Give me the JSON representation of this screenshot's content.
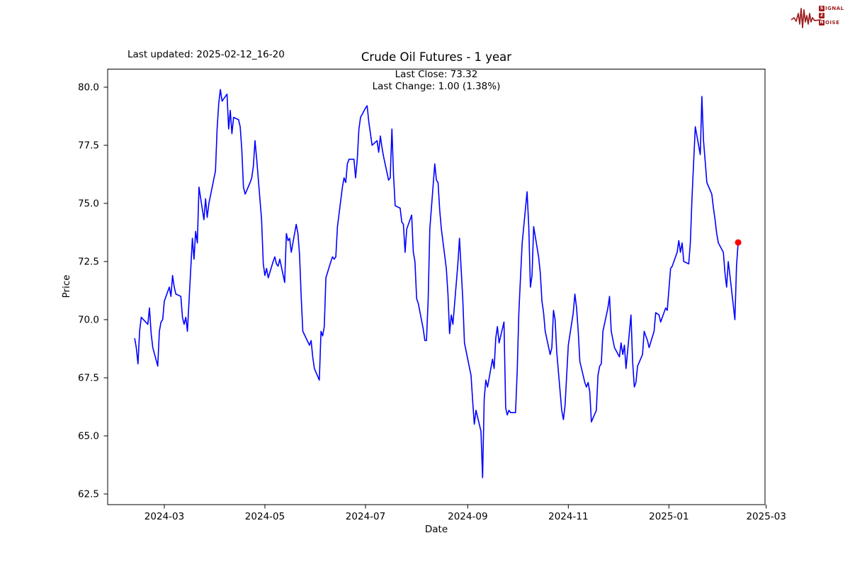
{
  "header": {
    "last_updated": "Last updated: 2025-02-12_16-20"
  },
  "logo": {
    "rows": [
      {
        "boxed": "S",
        "rest": "IGNAL"
      },
      {
        "boxed": "2",
        "rest": ""
      },
      {
        "boxed": "N",
        "rest": "OISE"
      }
    ]
  },
  "chart_data": {
    "type": "line",
    "title": "Crude Oil Futures - 1 year",
    "subtitle_line1": "Last Close: 73.32",
    "subtitle_line2": "Last Change: 1.00 (1.38%)",
    "xlabel": "Date",
    "ylabel": "Price",
    "line_color": "#0000ff",
    "marker": {
      "date": "2025-02-12",
      "price": 73.32,
      "color": "#ff0000"
    },
    "grid": false,
    "ylim": [
      62.05,
      80.78
    ],
    "y_ticks": [
      {
        "label": "62.5",
        "value": 62.5
      },
      {
        "label": "65.0",
        "value": 65.0
      },
      {
        "label": "67.5",
        "value": 67.5
      },
      {
        "label": "70.0",
        "value": 70.0
      },
      {
        "label": "72.5",
        "value": 72.5
      },
      {
        "label": "75.0",
        "value": 75.0
      },
      {
        "label": "77.5",
        "value": 77.5
      },
      {
        "label": "80.0",
        "value": 80.0
      }
    ],
    "x_ticks": [
      {
        "label": "2024-03",
        "date": "2024-03-01"
      },
      {
        "label": "2024-05",
        "date": "2024-05-01"
      },
      {
        "label": "2024-07",
        "date": "2024-07-01"
      },
      {
        "label": "2024-09",
        "date": "2024-09-01"
      },
      {
        "label": "2024-11",
        "date": "2024-11-01"
      },
      {
        "label": "2025-01",
        "date": "2025-01-01"
      },
      {
        "label": "2025-03",
        "date": "2025-03-01"
      }
    ],
    "series": [
      {
        "name": "Price",
        "points": [
          [
            "2024-02-12",
            69.2
          ],
          [
            "2024-02-13",
            68.8
          ],
          [
            "2024-02-14",
            68.1
          ],
          [
            "2024-02-15",
            69.5
          ],
          [
            "2024-02-16",
            70.1
          ],
          [
            "2024-02-20",
            69.8
          ],
          [
            "2024-02-21",
            70.5
          ],
          [
            "2024-02-22",
            69.4
          ],
          [
            "2024-02-23",
            68.8
          ],
          [
            "2024-02-26",
            68.0
          ],
          [
            "2024-02-27",
            69.5
          ],
          [
            "2024-02-28",
            69.9
          ],
          [
            "2024-02-29",
            70.0
          ],
          [
            "2024-03-01",
            70.8
          ],
          [
            "2024-03-04",
            71.4
          ],
          [
            "2024-03-05",
            71.0
          ],
          [
            "2024-03-06",
            71.9
          ],
          [
            "2024-03-07",
            71.4
          ],
          [
            "2024-03-08",
            71.1
          ],
          [
            "2024-03-11",
            71.0
          ],
          [
            "2024-03-12",
            70.1
          ],
          [
            "2024-03-13",
            69.8
          ],
          [
            "2024-03-14",
            70.1
          ],
          [
            "2024-03-15",
            69.5
          ],
          [
            "2024-03-18",
            73.5
          ],
          [
            "2024-03-19",
            72.6
          ],
          [
            "2024-03-20",
            73.8
          ],
          [
            "2024-03-21",
            73.3
          ],
          [
            "2024-03-22",
            75.7
          ],
          [
            "2024-03-25",
            74.3
          ],
          [
            "2024-03-26",
            75.2
          ],
          [
            "2024-03-27",
            74.4
          ],
          [
            "2024-03-28",
            75.0
          ],
          [
            "2024-04-01",
            76.4
          ],
          [
            "2024-04-02",
            78.2
          ],
          [
            "2024-04-03",
            79.3
          ],
          [
            "2024-04-04",
            79.9
          ],
          [
            "2024-04-05",
            79.4
          ],
          [
            "2024-04-08",
            79.7
          ],
          [
            "2024-04-09",
            78.2
          ],
          [
            "2024-04-10",
            79.0
          ],
          [
            "2024-04-11",
            78.0
          ],
          [
            "2024-04-12",
            78.7
          ],
          [
            "2024-04-15",
            78.6
          ],
          [
            "2024-04-16",
            78.3
          ],
          [
            "2024-04-17",
            77.3
          ],
          [
            "2024-04-18",
            75.7
          ],
          [
            "2024-04-19",
            75.4
          ],
          [
            "2024-04-22",
            75.9
          ],
          [
            "2024-04-23",
            76.1
          ],
          [
            "2024-04-24",
            76.6
          ],
          [
            "2024-04-25",
            77.7
          ],
          [
            "2024-04-26",
            76.9
          ],
          [
            "2024-04-29",
            74.3
          ],
          [
            "2024-04-30",
            72.4
          ],
          [
            "2024-05-01",
            71.9
          ],
          [
            "2024-05-02",
            72.2
          ],
          [
            "2024-05-03",
            71.8
          ],
          [
            "2024-05-06",
            72.5
          ],
          [
            "2024-05-07",
            72.7
          ],
          [
            "2024-05-08",
            72.4
          ],
          [
            "2024-05-09",
            72.3
          ],
          [
            "2024-05-10",
            72.6
          ],
          [
            "2024-05-13",
            71.6
          ],
          [
            "2024-05-14",
            73.7
          ],
          [
            "2024-05-15",
            73.4
          ],
          [
            "2024-05-16",
            73.5
          ],
          [
            "2024-05-17",
            72.9
          ],
          [
            "2024-05-20",
            74.1
          ],
          [
            "2024-05-21",
            73.7
          ],
          [
            "2024-05-22",
            72.8
          ],
          [
            "2024-05-23",
            71.0
          ],
          [
            "2024-05-24",
            69.5
          ],
          [
            "2024-05-28",
            68.9
          ],
          [
            "2024-05-29",
            69.1
          ],
          [
            "2024-05-30",
            68.4
          ],
          [
            "2024-05-31",
            67.9
          ],
          [
            "2024-06-03",
            67.4
          ],
          [
            "2024-06-04",
            69.5
          ],
          [
            "2024-06-05",
            69.3
          ],
          [
            "2024-06-06",
            69.7
          ],
          [
            "2024-06-07",
            71.8
          ],
          [
            "2024-06-10",
            72.5
          ],
          [
            "2024-06-11",
            72.7
          ],
          [
            "2024-06-12",
            72.6
          ],
          [
            "2024-06-13",
            72.7
          ],
          [
            "2024-06-14",
            74.0
          ],
          [
            "2024-06-17",
            75.7
          ],
          [
            "2024-06-18",
            76.1
          ],
          [
            "2024-06-19",
            75.9
          ],
          [
            "2024-06-20",
            76.7
          ],
          [
            "2024-06-21",
            76.9
          ],
          [
            "2024-06-24",
            76.9
          ],
          [
            "2024-06-25",
            76.1
          ],
          [
            "2024-06-26",
            76.9
          ],
          [
            "2024-06-27",
            78.2
          ],
          [
            "2024-06-28",
            78.7
          ],
          [
            "2024-07-01",
            79.1
          ],
          [
            "2024-07-02",
            79.2
          ],
          [
            "2024-07-03",
            78.5
          ],
          [
            "2024-07-05",
            77.5
          ],
          [
            "2024-07-08",
            77.7
          ],
          [
            "2024-07-09",
            77.2
          ],
          [
            "2024-07-10",
            77.9
          ],
          [
            "2024-07-11",
            77.4
          ],
          [
            "2024-07-12",
            77.0
          ],
          [
            "2024-07-15",
            76.0
          ],
          [
            "2024-07-16",
            76.1
          ],
          [
            "2024-07-17",
            78.2
          ],
          [
            "2024-07-18",
            76.2
          ],
          [
            "2024-07-19",
            74.9
          ],
          [
            "2024-07-22",
            74.8
          ],
          [
            "2024-07-23",
            74.2
          ],
          [
            "2024-07-24",
            74.1
          ],
          [
            "2024-07-25",
            72.9
          ],
          [
            "2024-07-26",
            73.9
          ],
          [
            "2024-07-29",
            74.5
          ],
          [
            "2024-07-30",
            72.9
          ],
          [
            "2024-07-31",
            72.5
          ],
          [
            "2024-08-01",
            70.9
          ],
          [
            "2024-08-02",
            70.7
          ],
          [
            "2024-08-05",
            69.6
          ],
          [
            "2024-08-06",
            69.1
          ],
          [
            "2024-08-07",
            69.1
          ],
          [
            "2024-08-08",
            70.9
          ],
          [
            "2024-08-09",
            73.9
          ],
          [
            "2024-08-12",
            76.7
          ],
          [
            "2024-08-13",
            76.0
          ],
          [
            "2024-08-14",
            75.9
          ],
          [
            "2024-08-15",
            74.7
          ],
          [
            "2024-08-16",
            73.9
          ],
          [
            "2024-08-19",
            72.2
          ],
          [
            "2024-08-20",
            71.1
          ],
          [
            "2024-08-21",
            69.4
          ],
          [
            "2024-08-22",
            70.2
          ],
          [
            "2024-08-23",
            69.8
          ],
          [
            "2024-08-26",
            72.4
          ],
          [
            "2024-08-27",
            73.5
          ],
          [
            "2024-08-28",
            72.2
          ],
          [
            "2024-08-29",
            70.9
          ],
          [
            "2024-08-30",
            69.0
          ],
          [
            "2024-09-03",
            67.6
          ],
          [
            "2024-09-04",
            66.5
          ],
          [
            "2024-09-05",
            65.5
          ],
          [
            "2024-09-06",
            66.1
          ],
          [
            "2024-09-09",
            65.2
          ],
          [
            "2024-09-10",
            63.2
          ],
          [
            "2024-09-11",
            66.6
          ],
          [
            "2024-09-12",
            67.4
          ],
          [
            "2024-09-13",
            67.1
          ],
          [
            "2024-09-16",
            68.3
          ],
          [
            "2024-09-17",
            67.9
          ],
          [
            "2024-09-18",
            69.2
          ],
          [
            "2024-09-19",
            69.7
          ],
          [
            "2024-09-20",
            69.0
          ],
          [
            "2024-09-23",
            69.9
          ],
          [
            "2024-09-24",
            66.2
          ],
          [
            "2024-09-25",
            65.9
          ],
          [
            "2024-09-26",
            66.1
          ],
          [
            "2024-09-27",
            66.0
          ],
          [
            "2024-09-30",
            66.0
          ],
          [
            "2024-10-01",
            67.8
          ],
          [
            "2024-10-02",
            70.3
          ],
          [
            "2024-10-03",
            71.8
          ],
          [
            "2024-10-04",
            73.3
          ],
          [
            "2024-10-07",
            75.5
          ],
          [
            "2024-10-08",
            74.0
          ],
          [
            "2024-10-09",
            71.4
          ],
          [
            "2024-10-10",
            71.9
          ],
          [
            "2024-10-11",
            74.0
          ],
          [
            "2024-10-14",
            72.7
          ],
          [
            "2024-10-15",
            72.0
          ],
          [
            "2024-10-16",
            70.8
          ],
          [
            "2024-10-17",
            70.3
          ],
          [
            "2024-10-18",
            69.5
          ],
          [
            "2024-10-21",
            68.5
          ],
          [
            "2024-10-22",
            68.8
          ],
          [
            "2024-10-23",
            70.4
          ],
          [
            "2024-10-24",
            70.0
          ],
          [
            "2024-10-25",
            68.6
          ],
          [
            "2024-10-28",
            66.1
          ],
          [
            "2024-10-29",
            65.7
          ],
          [
            "2024-10-30",
            66.3
          ],
          [
            "2024-10-31",
            67.6
          ],
          [
            "2024-11-01",
            68.9
          ],
          [
            "2024-11-04",
            70.3
          ],
          [
            "2024-11-05",
            71.1
          ],
          [
            "2024-11-06",
            70.5
          ],
          [
            "2024-11-07",
            69.5
          ],
          [
            "2024-11-08",
            68.2
          ],
          [
            "2024-11-11",
            67.3
          ],
          [
            "2024-11-12",
            67.1
          ],
          [
            "2024-11-13",
            67.3
          ],
          [
            "2024-11-14",
            66.9
          ],
          [
            "2024-11-15",
            65.6
          ],
          [
            "2024-11-18",
            66.1
          ],
          [
            "2024-11-19",
            67.6
          ],
          [
            "2024-11-20",
            68.0
          ],
          [
            "2024-11-21",
            68.1
          ],
          [
            "2024-11-22",
            69.5
          ],
          [
            "2024-11-25",
            70.5
          ],
          [
            "2024-11-26",
            71.0
          ],
          [
            "2024-11-27",
            69.5
          ],
          [
            "2024-11-29",
            68.8
          ],
          [
            "2024-12-02",
            68.4
          ],
          [
            "2024-12-03",
            69.0
          ],
          [
            "2024-12-04",
            68.5
          ],
          [
            "2024-12-05",
            68.9
          ],
          [
            "2024-12-06",
            67.9
          ],
          [
            "2024-12-09",
            70.2
          ],
          [
            "2024-12-10",
            68.2
          ],
          [
            "2024-12-11",
            67.1
          ],
          [
            "2024-12-12",
            67.3
          ],
          [
            "2024-12-13",
            68.0
          ],
          [
            "2024-12-16",
            68.5
          ],
          [
            "2024-12-17",
            69.5
          ],
          [
            "2024-12-18",
            69.3
          ],
          [
            "2024-12-19",
            69.1
          ],
          [
            "2024-12-20",
            68.8
          ],
          [
            "2024-12-23",
            69.5
          ],
          [
            "2024-12-24",
            70.3
          ],
          [
            "2024-12-26",
            70.2
          ],
          [
            "2024-12-27",
            69.9
          ],
          [
            "2024-12-30",
            70.5
          ],
          [
            "2024-12-31",
            70.4
          ],
          [
            "2025-01-02",
            72.2
          ],
          [
            "2025-01-03",
            72.3
          ],
          [
            "2025-01-06",
            72.9
          ],
          [
            "2025-01-07",
            73.4
          ],
          [
            "2025-01-08",
            72.9
          ],
          [
            "2025-01-09",
            73.3
          ],
          [
            "2025-01-10",
            72.5
          ],
          [
            "2025-01-13",
            72.4
          ],
          [
            "2025-01-14",
            73.3
          ],
          [
            "2025-01-15",
            75.2
          ],
          [
            "2025-01-16",
            76.8
          ],
          [
            "2025-01-17",
            78.3
          ],
          [
            "2025-01-20",
            77.1
          ],
          [
            "2025-01-21",
            79.6
          ],
          [
            "2025-01-22",
            77.7
          ],
          [
            "2025-01-23",
            76.8
          ],
          [
            "2025-01-24",
            75.9
          ],
          [
            "2025-01-27",
            75.4
          ],
          [
            "2025-01-28",
            74.8
          ],
          [
            "2025-01-29",
            74.3
          ],
          [
            "2025-01-30",
            73.7
          ],
          [
            "2025-01-31",
            73.3
          ],
          [
            "2025-02-03",
            72.9
          ],
          [
            "2025-02-04",
            72.0
          ],
          [
            "2025-02-05",
            71.4
          ],
          [
            "2025-02-06",
            72.5
          ],
          [
            "2025-02-07",
            71.9
          ],
          [
            "2025-02-10",
            70.0
          ],
          [
            "2025-02-11",
            72.32
          ],
          [
            "2025-02-12",
            73.32
          ]
        ]
      }
    ]
  }
}
